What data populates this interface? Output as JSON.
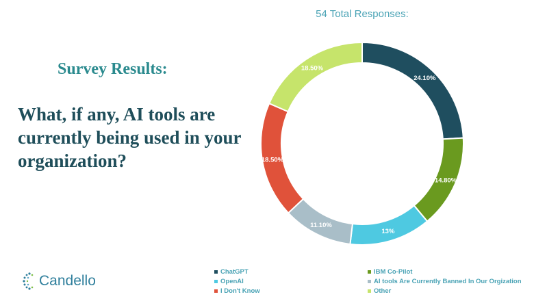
{
  "heading": "Survey Results:",
  "question": "What, if any, AI tools are currently being used in your organization?",
  "logo": {
    "text": "Candello",
    "icon": "candello-logo-icon"
  },
  "chart_data": {
    "type": "pie",
    "style": "donut",
    "title": "54 Total Responses:",
    "legend_position": "bottom",
    "slices": [
      {
        "label": "ChatGPT",
        "value": 24.1,
        "value_label": "24.10%",
        "color": "#1f4e5f"
      },
      {
        "label": "IBM Co-Pilot",
        "value": 14.8,
        "value_label": "14.80%",
        "color": "#6a9a1f"
      },
      {
        "label": "OpenAI",
        "value": 13,
        "value_label": "13%",
        "color": "#4ec9e1"
      },
      {
        "label": "AI tools Are Currently Banned In Our Orgization",
        "value": 11.1,
        "value_label": "11.10%",
        "color": "#a9bec8"
      },
      {
        "label": "I Don't Know",
        "value": 18.5,
        "value_label": "18.50%",
        "color": "#e0523a"
      },
      {
        "label": "Other",
        "value": 18.5,
        "value_label": "18.50%",
        "color": "#c6e46b"
      }
    ]
  }
}
